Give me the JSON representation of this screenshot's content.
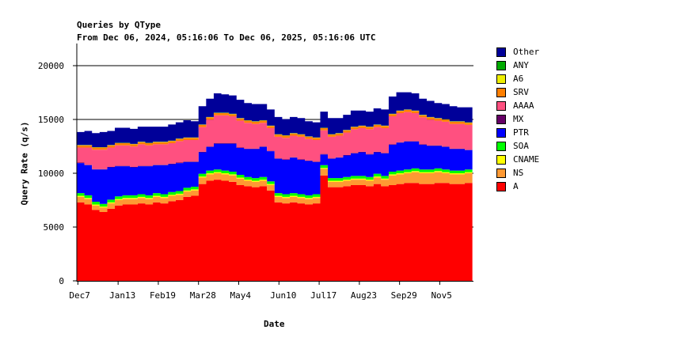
{
  "chart_data": {
    "type": "area",
    "stacked": true,
    "title": "Queries by QType",
    "subtitle": "From Dec 06, 2024, 05:16:06 To Dec 06, 2025, 05:16:06 UTC",
    "xlabel": "Date",
    "ylabel": "Query Rate (q/s)",
    "ylim": [
      0,
      22000
    ],
    "yticks": [
      0,
      5000,
      10000,
      15000,
      20000
    ],
    "xlim_days": [
      0,
      365
    ],
    "xticks": [
      {
        "label": "Dec7",
        "day": 1
      },
      {
        "label": "Jan13",
        "day": 38
      },
      {
        "label": "Feb19",
        "day": 75
      },
      {
        "label": "Mar28",
        "day": 112
      },
      {
        "label": "May4",
        "day": 149
      },
      {
        "label": "Jun10",
        "day": 186
      },
      {
        "label": "Jul17",
        "day": 223
      },
      {
        "label": "Aug23",
        "day": 260
      },
      {
        "label": "Sep29",
        "day": 297
      },
      {
        "label": "Nov5",
        "day": 334
      }
    ],
    "x_step_days": 7,
    "legend_position": "right",
    "series": [
      {
        "name": "A",
        "color": "#ff0000",
        "values": [
          7300,
          7100,
          6600,
          6400,
          6700,
          7000,
          7100,
          7100,
          7200,
          7100,
          7300,
          7200,
          7400,
          7500,
          7800,
          7900,
          9000,
          9300,
          9400,
          9300,
          9200,
          8900,
          8800,
          8700,
          8800,
          8400,
          7300,
          7200,
          7300,
          7200,
          7100,
          7200,
          9800,
          8700,
          8700,
          8800,
          8900,
          8900,
          8800,
          9000,
          8800,
          8900,
          9000,
          9100,
          9100,
          9000,
          9000,
          9100,
          9100,
          9000,
          9000,
          9100
        ]
      },
      {
        "name": "NS",
        "color": "#ff9933",
        "values": [
          500,
          500,
          400,
          400,
          500,
          500,
          500,
          500,
          500,
          500,
          500,
          500,
          500,
          500,
          500,
          500,
          600,
          600,
          600,
          600,
          600,
          600,
          500,
          500,
          500,
          500,
          500,
          500,
          500,
          500,
          500,
          500,
          600,
          500,
          500,
          500,
          500,
          500,
          500,
          600,
          600,
          900,
          900,
          900,
          1000,
          1000,
          1000,
          1000,
          900,
          900,
          900,
          900
        ]
      },
      {
        "name": "CNAME",
        "color": "#ffff00",
        "values": [
          100,
          100,
          100,
          100,
          100,
          100,
          100,
          100,
          100,
          100,
          100,
          100,
          100,
          100,
          100,
          100,
          100,
          100,
          100,
          100,
          100,
          100,
          100,
          100,
          100,
          100,
          100,
          100,
          100,
          100,
          100,
          100,
          100,
          100,
          100,
          100,
          100,
          100,
          100,
          100,
          100,
          100,
          100,
          100,
          100,
          100,
          100,
          100,
          100,
          100,
          100,
          100
        ]
      },
      {
        "name": "SOA",
        "color": "#00ff00",
        "values": [
          250,
          250,
          250,
          250,
          250,
          250,
          250,
          250,
          250,
          250,
          250,
          250,
          250,
          250,
          250,
          250,
          250,
          250,
          250,
          250,
          250,
          250,
          250,
          250,
          250,
          250,
          250,
          250,
          250,
          250,
          250,
          250,
          250,
          250,
          250,
          250,
          250,
          250,
          250,
          250,
          250,
          250,
          250,
          250,
          250,
          250,
          250,
          250,
          250,
          250,
          250,
          250
        ]
      },
      {
        "name": "PTR",
        "color": "#0000ff",
        "values": [
          2800,
          2800,
          3000,
          3200,
          3000,
          2800,
          2700,
          2600,
          2600,
          2700,
          2600,
          2700,
          2600,
          2600,
          2400,
          2300,
          2000,
          2200,
          2400,
          2500,
          2600,
          2500,
          2600,
          2700,
          2800,
          2800,
          3200,
          3200,
          3300,
          3200,
          3200,
          3000,
          1000,
          1800,
          1900,
          2000,
          2100,
          2200,
          2100,
          2000,
          2100,
          2500,
          2600,
          2600,
          2500,
          2300,
          2200,
          2100,
          2100,
          2000,
          2000,
          1800
        ]
      },
      {
        "name": "MX",
        "color": "#660066",
        "values": [
          40,
          40,
          40,
          40,
          40,
          40,
          40,
          40,
          40,
          40,
          40,
          40,
          40,
          40,
          40,
          40,
          40,
          40,
          40,
          40,
          40,
          40,
          40,
          40,
          40,
          40,
          40,
          40,
          40,
          40,
          40,
          40,
          40,
          40,
          40,
          40,
          40,
          40,
          40,
          40,
          40,
          40,
          40,
          40,
          40,
          40,
          40,
          40,
          40,
          40,
          40,
          40
        ]
      },
      {
        "name": "AAAA",
        "color": "#ff5080",
        "values": [
          1400,
          1600,
          1800,
          1800,
          1800,
          1900,
          1900,
          1900,
          2000,
          1900,
          1900,
          1900,
          1900,
          2000,
          2000,
          2000,
          2300,
          2500,
          2600,
          2600,
          2500,
          2500,
          2400,
          2300,
          2200,
          2100,
          2000,
          2000,
          2000,
          2100,
          2000,
          2000,
          2200,
          2000,
          2000,
          2100,
          2200,
          2200,
          2300,
          2300,
          2300,
          2600,
          2700,
          2700,
          2600,
          2500,
          2400,
          2300,
          2300,
          2300,
          2300,
          2300
        ]
      },
      {
        "name": "SRV",
        "color": "#ff7f00",
        "values": [
          200,
          200,
          200,
          200,
          200,
          200,
          200,
          200,
          200,
          200,
          200,
          200,
          200,
          200,
          200,
          200,
          200,
          200,
          200,
          200,
          200,
          200,
          200,
          200,
          200,
          200,
          200,
          200,
          200,
          200,
          200,
          200,
          200,
          200,
          200,
          200,
          200,
          200,
          200,
          200,
          200,
          200,
          200,
          200,
          200,
          200,
          200,
          200,
          200,
          200,
          200,
          200
        ]
      },
      {
        "name": "A6",
        "color": "#eeee00",
        "values": [
          20,
          20,
          20,
          20,
          20,
          20,
          20,
          20,
          20,
          20,
          20,
          20,
          20,
          20,
          20,
          20,
          20,
          20,
          20,
          20,
          20,
          20,
          20,
          20,
          20,
          20,
          20,
          20,
          20,
          20,
          20,
          20,
          20,
          20,
          20,
          20,
          20,
          20,
          20,
          20,
          20,
          20,
          20,
          20,
          20,
          20,
          20,
          20,
          20,
          20,
          20,
          20
        ]
      },
      {
        "name": "ANY",
        "color": "#00aa00",
        "values": [
          20,
          20,
          20,
          20,
          20,
          20,
          20,
          20,
          20,
          20,
          20,
          20,
          20,
          20,
          20,
          20,
          20,
          20,
          20,
          20,
          20,
          20,
          20,
          20,
          20,
          20,
          20,
          20,
          20,
          20,
          20,
          20,
          20,
          20,
          20,
          20,
          20,
          20,
          20,
          20,
          20,
          20,
          20,
          20,
          20,
          20,
          20,
          20,
          20,
          20,
          20,
          20
        ]
      },
      {
        "name": "Other",
        "color": "#000099",
        "values": [
          1200,
          1300,
          1300,
          1400,
          1300,
          1400,
          1400,
          1400,
          1400,
          1500,
          1400,
          1400,
          1500,
          1500,
          1600,
          1500,
          1700,
          1700,
          1800,
          1700,
          1700,
          1700,
          1600,
          1600,
          1500,
          1500,
          1600,
          1500,
          1500,
          1500,
          1400,
          1400,
          1500,
          1500,
          1400,
          1400,
          1500,
          1400,
          1400,
          1500,
          1500,
          1600,
          1700,
          1600,
          1600,
          1500,
          1500,
          1400,
          1400,
          1400,
          1300,
          1400
        ]
      }
    ]
  }
}
